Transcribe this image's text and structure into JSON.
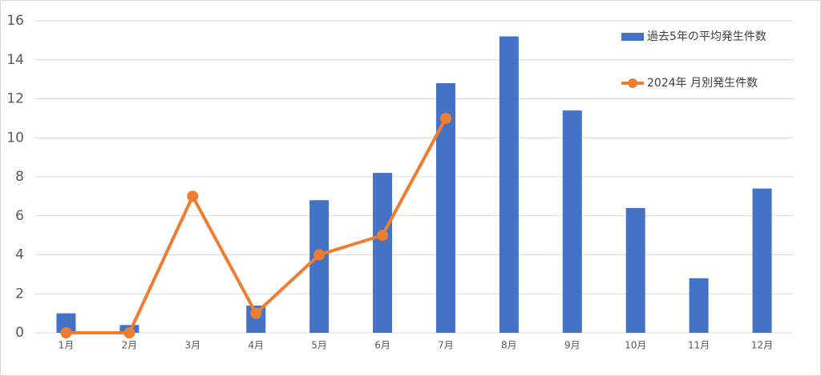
{
  "chart_data": {
    "type": "bar",
    "categories": [
      "1月",
      "2月",
      "3月",
      "4月",
      "5月",
      "6月",
      "7月",
      "8月",
      "9月",
      "10月",
      "11月",
      "12月"
    ],
    "series": [
      {
        "name": "過去5年の平均発生件数",
        "type": "bar",
        "color": "#4472c4",
        "values": [
          1,
          0.4,
          0,
          1.4,
          6.8,
          8.2,
          12.8,
          15.2,
          11.4,
          6.4,
          2.8,
          7.4
        ]
      },
      {
        "name": "2024年 月別発生件数",
        "type": "line",
        "color": "#ed7d31",
        "values": [
          0,
          0,
          7,
          1,
          4,
          5,
          11,
          null,
          null,
          null,
          null,
          null
        ]
      }
    ],
    "ylim": [
      0,
      16
    ],
    "yticks": [
      0,
      2,
      4,
      6,
      8,
      10,
      12,
      14,
      16
    ],
    "grid": true,
    "legend": "top-right"
  }
}
